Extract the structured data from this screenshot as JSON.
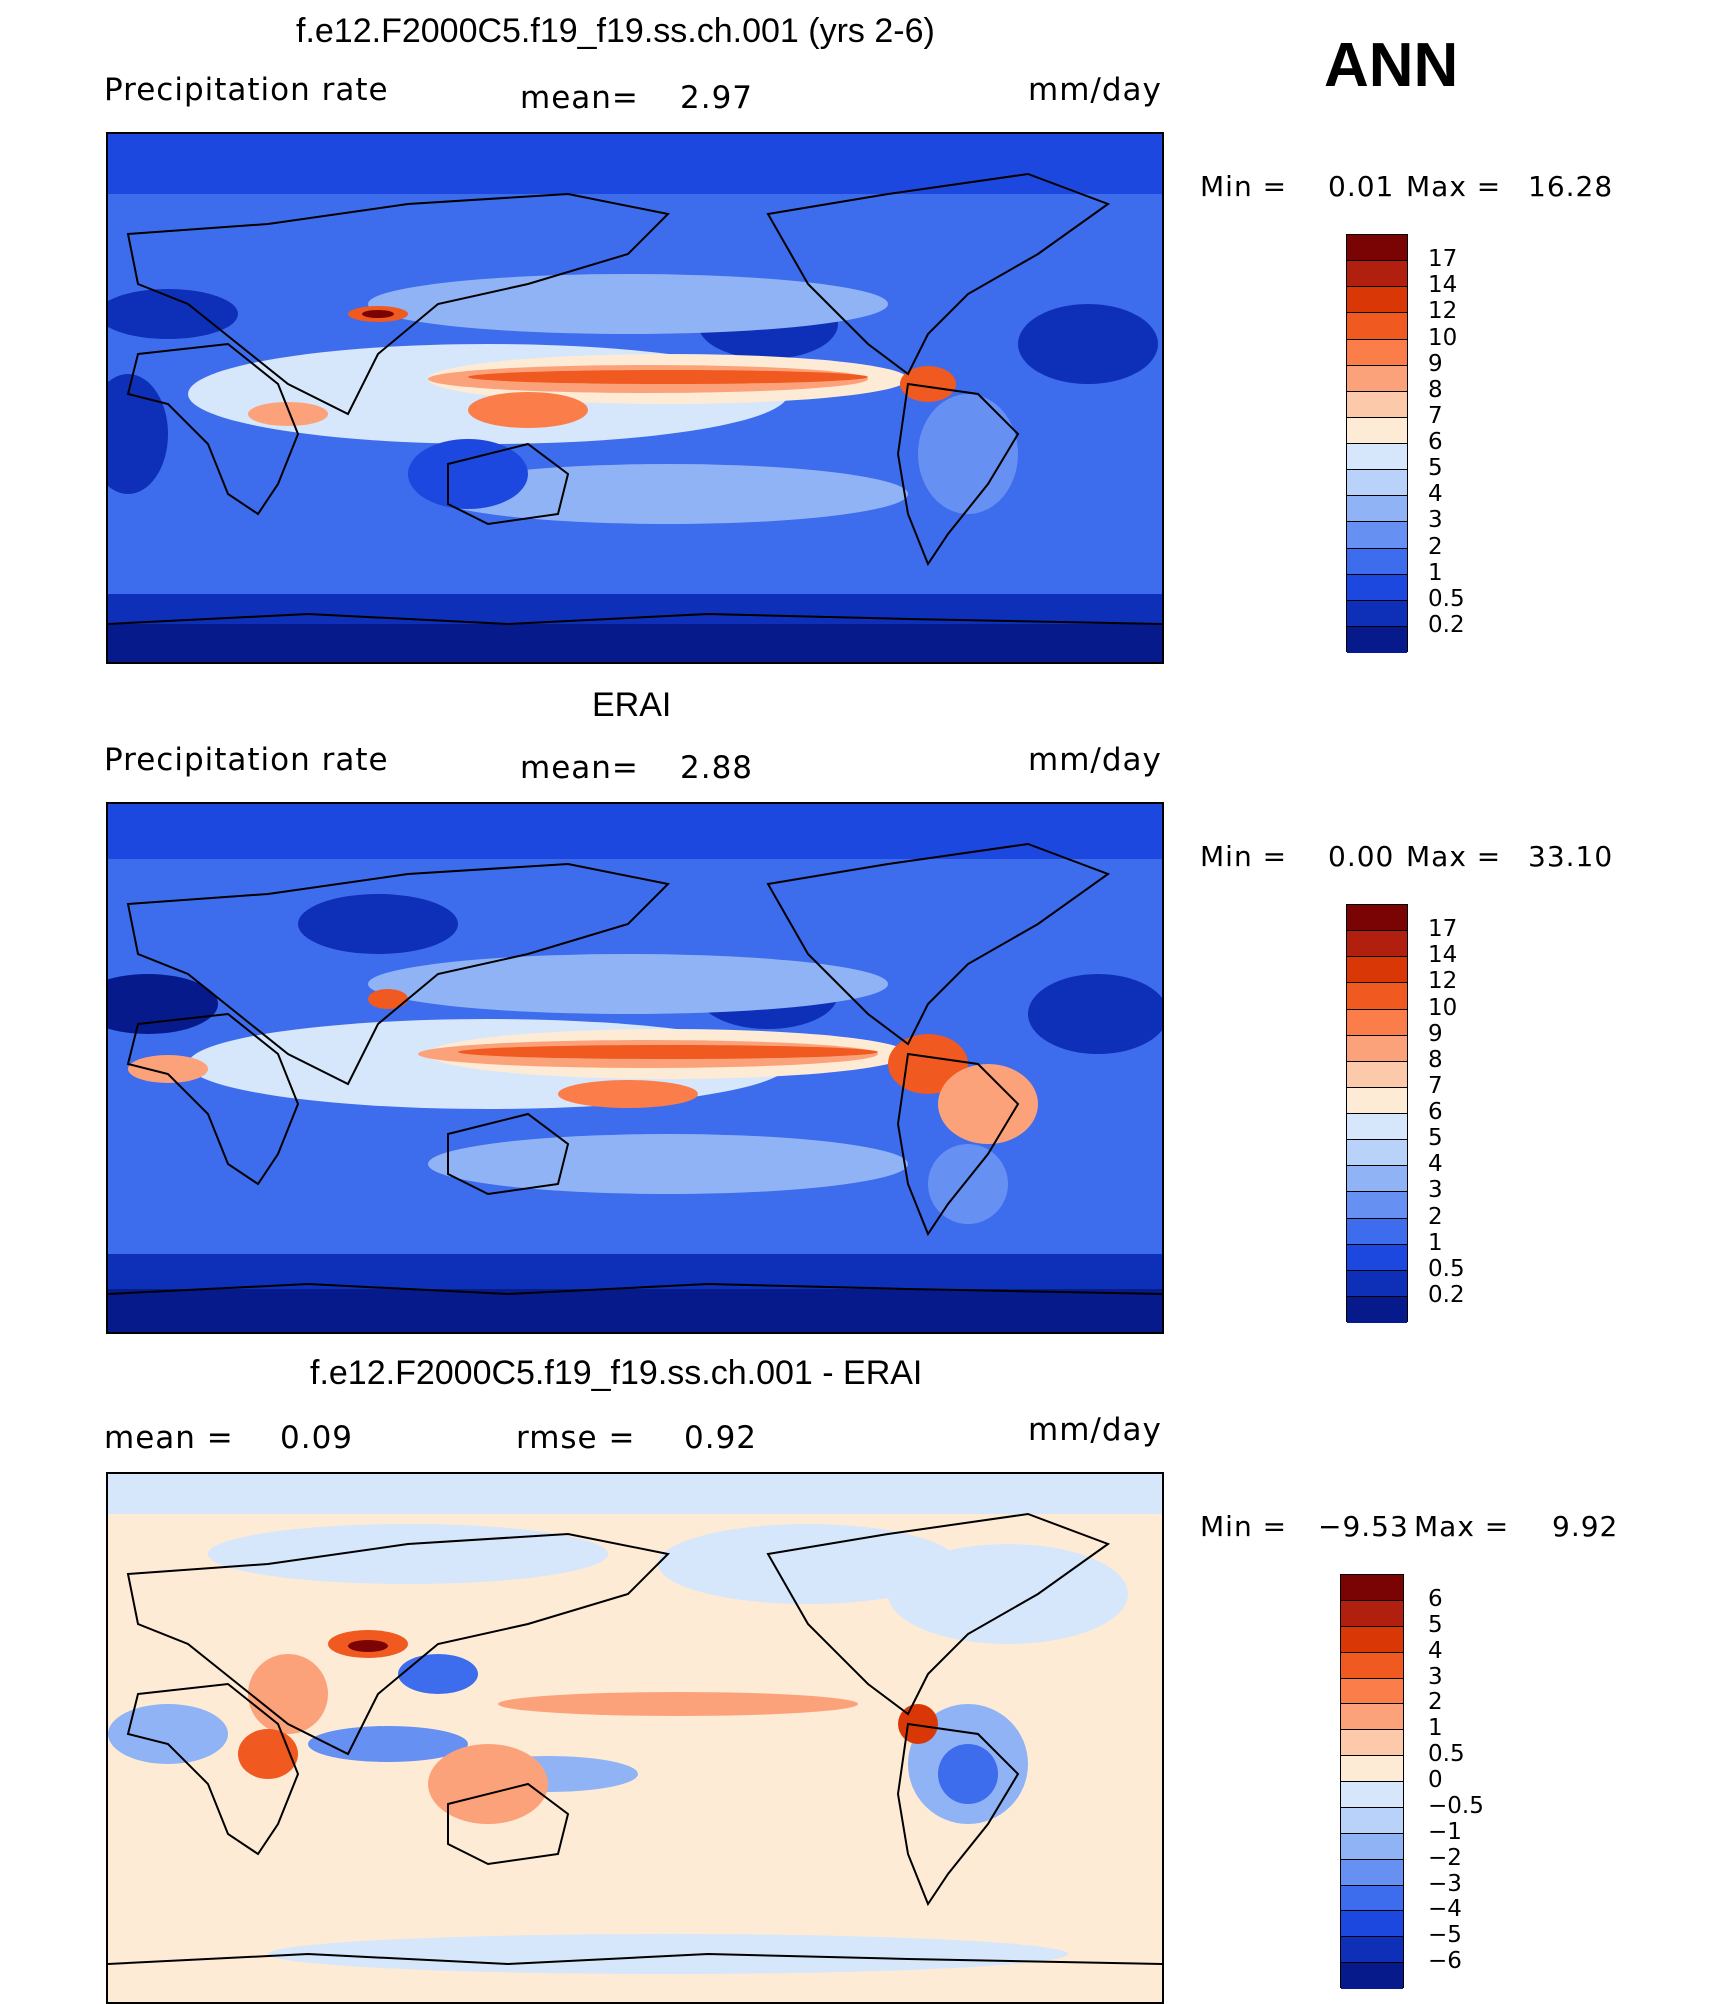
{
  "season": "ANN",
  "units": "mm/day",
  "panels": [
    {
      "title": "f.e12.F2000C5.f19_f19.ss.ch.001 (yrs 2-6)",
      "left_label": "Precipitation  rate",
      "mean_label": "mean=",
      "mean_value": "2.97",
      "min_label": "Min  =",
      "min_value": "0.01",
      "max_label": "Max  =",
      "max_value": "16.28"
    },
    {
      "title": "ERAI",
      "left_label": "Precipitation  rate",
      "mean_label": "mean=",
      "mean_value": "2.88",
      "min_label": "Min  =",
      "min_value": "0.00",
      "max_label": "Max  =",
      "max_value": "33.10"
    },
    {
      "title": "f.e12.F2000C5.f19_f19.ss.ch.001 - ERAI",
      "left_label": "mean  =",
      "left_value": "0.09",
      "rmse_label": "rmse  =",
      "rmse_value": "0.92",
      "min_label": "Min  =",
      "min_value": "−9.53",
      "max_label": "Max  =",
      "max_value": "9.92"
    }
  ],
  "colorbar_abs": {
    "ticks": [
      "17",
      "14",
      "12",
      "10",
      "9",
      "8",
      "7",
      "6",
      "5",
      "4",
      "3",
      "2",
      "1",
      "0.5",
      "0.2"
    ],
    "colors": [
      "#7a0403",
      "#b1200f",
      "#d93806",
      "#f0591f",
      "#fb7d49",
      "#fca27a",
      "#fcc9aa",
      "#fdebd6",
      "#d6e6fb",
      "#b8d2fa",
      "#8fb3f5",
      "#6690f2",
      "#3d6ced",
      "#1d48df",
      "#0e2fb8",
      "#061a8c"
    ]
  },
  "colorbar_diff": {
    "ticks": [
      "6",
      "5",
      "4",
      "3",
      "2",
      "1",
      "0.5",
      "0",
      "−0.5",
      "−1",
      "−2",
      "−3",
      "−4",
      "−5",
      "−6"
    ],
    "colors": [
      "#7a0403",
      "#b1200f",
      "#d93806",
      "#f0591f",
      "#fb7d49",
      "#fca27a",
      "#fcc9aa",
      "#fdebd6",
      "#d6e6fb",
      "#b8d2fa",
      "#8fb3f5",
      "#6690f2",
      "#3d6ced",
      "#1d48df",
      "#0e2fb8",
      "#061a8c"
    ]
  },
  "fill_colors": {
    "deep_blue": "#061a8c",
    "blue": "#1d48df",
    "mid_blue": "#3d6ced",
    "light_blue": "#8fb3f5",
    "pale_blue": "#d6e6fb",
    "peach": "#fdebd6",
    "light_orange": "#fca27a",
    "orange": "#f0591f",
    "dark_red": "#7a0403"
  }
}
